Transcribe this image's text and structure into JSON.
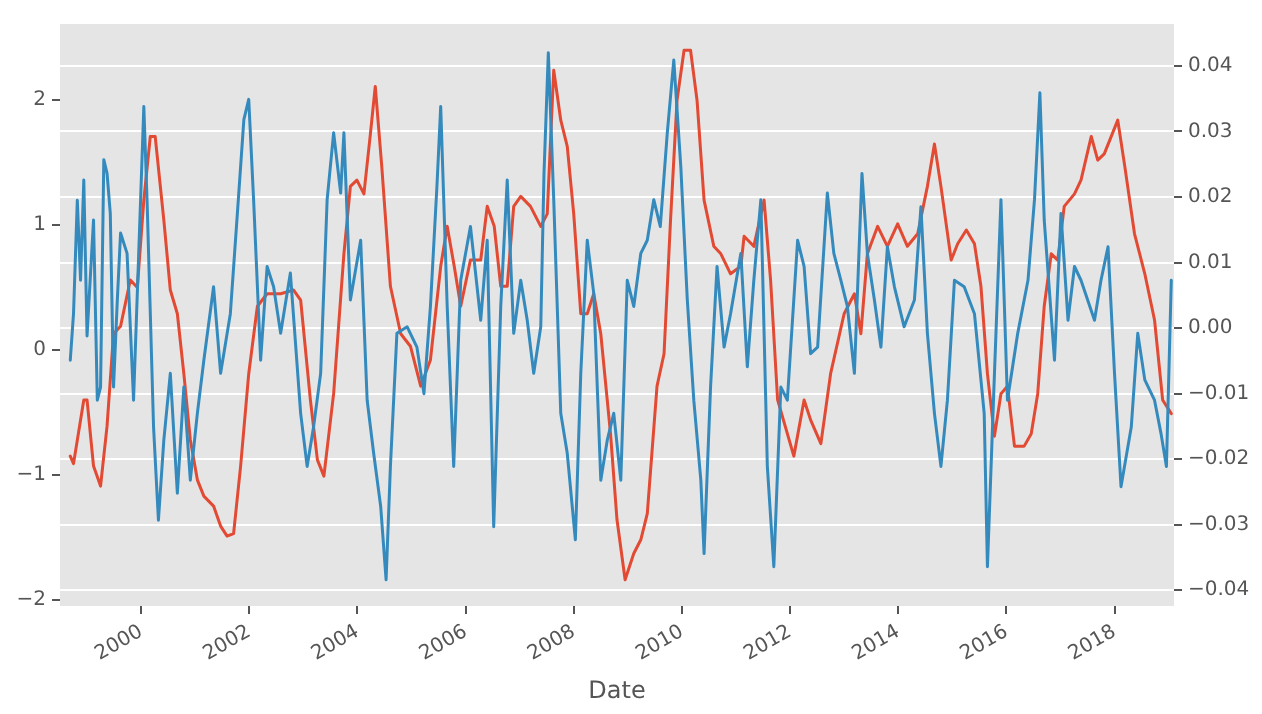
{
  "chart_data": {
    "type": "line",
    "xlabel": "Date",
    "grid": "y",
    "legend": false,
    "marker": "none",
    "line_style": "solid",
    "xlim": [
      1998.5,
      2019.1
    ],
    "xticks": [
      2000,
      2002,
      2004,
      2006,
      2008,
      2010,
      2012,
      2014,
      2016,
      2018
    ],
    "ylim": [
      -2.05,
      2.61
    ],
    "yticks": [
      {
        "value": -2,
        "label": "−2"
      },
      {
        "value": -1,
        "label": "−1"
      },
      0,
      1,
      2
    ],
    "y2lim": [
      -0.0424,
      0.0464
    ],
    "y2ticks": [
      {
        "value": -0.04,
        "label": "−0.04"
      },
      {
        "value": -0.03,
        "label": "−0.03"
      },
      {
        "value": -0.02,
        "label": "−0.02"
      },
      {
        "value": -0.01,
        "label": "−0.01"
      },
      {
        "value": 0,
        "label": "0.00"
      },
      {
        "value": 0.01,
        "label": "0.01"
      },
      {
        "value": 0.02,
        "label": "0.02"
      },
      {
        "value": 0.03,
        "label": "0.03"
      },
      {
        "value": 0.04,
        "label": "0.04"
      }
    ],
    "series": [
      {
        "color": "#e24a33",
        "axis": "y",
        "x": [
          1998.69,
          1998.75,
          1998.94,
          1999.0,
          1999.12,
          1999.25,
          1999.37,
          1999.49,
          1999.62,
          1999.8,
          1999.93,
          2000.05,
          2000.17,
          2000.26,
          2000.42,
          2000.54,
          2000.67,
          2000.79,
          2000.91,
          2001.04,
          2001.16,
          2001.34,
          2001.47,
          2001.59,
          2001.71,
          2001.84,
          2001.99,
          2002.15,
          2002.33,
          2002.58,
          2002.82,
          2002.95,
          2003.13,
          2003.26,
          2003.38,
          2003.56,
          2003.75,
          2003.87,
          2003.99,
          2004.12,
          2004.24,
          2004.33,
          2004.45,
          2004.61,
          2004.8,
          2004.98,
          2005.17,
          2005.35,
          2005.54,
          2005.66,
          2005.79,
          2005.91,
          2006.09,
          2006.28,
          2006.4,
          2006.53,
          2006.65,
          2006.77,
          2006.89,
          2007.02,
          2007.2,
          2007.39,
          2007.51,
          2007.63,
          2007.76,
          2007.88,
          2008.0,
          2008.13,
          2008.25,
          2008.37,
          2008.5,
          2008.68,
          2008.8,
          2008.95,
          2009.11,
          2009.24,
          2009.36,
          2009.54,
          2009.67,
          2009.79,
          2009.91,
          2010.04,
          2010.16,
          2010.28,
          2010.41,
          2010.59,
          2010.72,
          2010.9,
          2011.09,
          2011.15,
          2011.33,
          2011.52,
          2011.64,
          2011.77,
          2011.95,
          2012.07,
          2012.26,
          2012.38,
          2012.57,
          2012.75,
          2013.0,
          2013.19,
          2013.31,
          2013.43,
          2013.62,
          2013.8,
          2013.99,
          2014.17,
          2014.36,
          2014.54,
          2014.67,
          2014.79,
          2014.98,
          2015.1,
          2015.26,
          2015.41,
          2015.53,
          2015.65,
          2015.78,
          2015.9,
          2016.02,
          2016.15,
          2016.33,
          2016.46,
          2016.58,
          2016.7,
          2016.83,
          2016.95,
          2017.07,
          2017.26,
          2017.38,
          2017.57,
          2017.69,
          2017.81,
          2017.94,
          2018.06,
          2018.19,
          2018.37,
          2018.56,
          2018.74,
          2018.89,
          2019.05
        ],
        "values": [
          -0.85,
          -0.91,
          -0.4,
          -0.4,
          -0.93,
          -1.09,
          -0.61,
          0.13,
          0.19,
          0.56,
          0.5,
          1.2,
          1.71,
          1.71,
          1.04,
          0.48,
          0.29,
          -0.19,
          -0.72,
          -1.04,
          -1.17,
          -1.25,
          -1.41,
          -1.49,
          -1.47,
          -0.93,
          -0.19,
          0.35,
          0.45,
          0.45,
          0.48,
          0.4,
          -0.4,
          -0.88,
          -1.01,
          -0.35,
          0.77,
          1.31,
          1.36,
          1.25,
          1.73,
          2.11,
          1.47,
          0.51,
          0.13,
          0.03,
          -0.29,
          -0.08,
          0.67,
          0.99,
          0.67,
          0.35,
          0.72,
          0.72,
          1.15,
          0.99,
          0.51,
          0.51,
          1.15,
          1.23,
          1.15,
          0.99,
          1.09,
          2.24,
          1.84,
          1.63,
          1.09,
          0.29,
          0.29,
          0.45,
          0.13,
          -0.67,
          -1.36,
          -1.84,
          -1.63,
          -1.52,
          -1.31,
          -0.29,
          -0.03,
          1.04,
          2.0,
          2.4,
          2.4,
          2.0,
          1.2,
          0.83,
          0.77,
          0.61,
          0.67,
          0.91,
          0.83,
          1.2,
          0.56,
          -0.4,
          -0.67,
          -0.85,
          -0.4,
          -0.56,
          -0.75,
          -0.19,
          0.29,
          0.45,
          0.13,
          0.77,
          0.99,
          0.83,
          1.01,
          0.83,
          0.93,
          1.31,
          1.65,
          1.31,
          0.72,
          0.85,
          0.96,
          0.85,
          0.51,
          -0.19,
          -0.69,
          -0.35,
          -0.29,
          -0.77,
          -0.77,
          -0.67,
          -0.35,
          0.35,
          0.77,
          0.72,
          1.15,
          1.25,
          1.36,
          1.71,
          1.52,
          1.57,
          1.71,
          1.84,
          1.47,
          0.93,
          0.61,
          0.24,
          -0.4,
          -0.51
        ]
      },
      {
        "color": "#348abd",
        "axis": "y2",
        "x": [
          1998.69,
          1998.75,
          1998.82,
          1998.88,
          1998.94,
          1999.0,
          1999.12,
          1999.19,
          1999.25,
          1999.31,
          1999.37,
          1999.43,
          1999.49,
          1999.56,
          1999.62,
          1999.74,
          1999.86,
          1999.99,
          2000.05,
          2000.11,
          2000.23,
          2000.32,
          2000.42,
          2000.54,
          2000.67,
          2000.79,
          2000.91,
          2001.04,
          2001.16,
          2001.34,
          2001.47,
          2001.65,
          2001.78,
          2001.9,
          2001.99,
          2002.08,
          2002.21,
          2002.33,
          2002.45,
          2002.58,
          2002.76,
          2002.95,
          2003.07,
          2003.19,
          2003.32,
          2003.44,
          2003.56,
          2003.69,
          2003.75,
          2003.87,
          2004.06,
          2004.18,
          2004.3,
          2004.43,
          2004.53,
          2004.61,
          2004.73,
          2004.92,
          2005.1,
          2005.23,
          2005.35,
          2005.47,
          2005.54,
          2005.66,
          2005.78,
          2005.91,
          2006.09,
          2006.28,
          2006.4,
          2006.52,
          2006.65,
          2006.77,
          2006.89,
          2007.02,
          2007.14,
          2007.26,
          2007.39,
          2007.45,
          2007.53,
          2007.63,
          2007.76,
          2007.88,
          2008.03,
          2008.13,
          2008.25,
          2008.37,
          2008.5,
          2008.62,
          2008.74,
          2008.87,
          2008.99,
          2009.11,
          2009.24,
          2009.36,
          2009.48,
          2009.6,
          2009.73,
          2009.85,
          2009.98,
          2010.1,
          2010.22,
          2010.35,
          2010.41,
          2010.53,
          2010.65,
          2010.78,
          2010.9,
          2011.09,
          2011.21,
          2011.33,
          2011.46,
          2011.58,
          2011.7,
          2011.83,
          2011.95,
          2012.14,
          2012.26,
          2012.38,
          2012.51,
          2012.69,
          2012.81,
          2012.94,
          2013.06,
          2013.19,
          2013.33,
          2013.43,
          2013.56,
          2013.68,
          2013.8,
          2013.93,
          2014.11,
          2014.3,
          2014.42,
          2014.54,
          2014.67,
          2014.79,
          2014.91,
          2015.04,
          2015.22,
          2015.41,
          2015.59,
          2015.65,
          2015.78,
          2015.9,
          2016.02,
          2016.21,
          2016.4,
          2016.52,
          2016.62,
          2016.7,
          2016.89,
          2017.01,
          2017.14,
          2017.26,
          2017.38,
          2017.63,
          2017.75,
          2017.88,
          2018.0,
          2018.12,
          2018.31,
          2018.43,
          2018.56,
          2018.74,
          2018.86,
          2018.96,
          2019.05
        ],
        "values": [
          -0.0049,
          0.0022,
          0.0195,
          0.0073,
          0.0226,
          -0.0012,
          0.0165,
          -0.011,
          -0.009,
          0.0257,
          0.0236,
          0.0175,
          -0.009,
          0.0043,
          0.0145,
          0.0114,
          -0.011,
          0.0195,
          0.0338,
          0.0195,
          -0.0151,
          -0.0293,
          -0.0171,
          -0.0069,
          -0.0252,
          -0.009,
          -0.0232,
          -0.013,
          -0.0049,
          0.0063,
          -0.0069,
          0.0022,
          0.0175,
          0.0318,
          0.0349,
          0.0196,
          -0.0049,
          0.0094,
          0.0063,
          -0.0008,
          0.0084,
          -0.013,
          -0.0211,
          -0.015,
          -0.0069,
          0.0196,
          0.0298,
          0.0206,
          0.0298,
          0.0043,
          0.0134,
          -0.011,
          -0.0191,
          -0.0272,
          -0.0384,
          -0.0211,
          -0.0008,
          0.0002,
          -0.0029,
          -0.01,
          0.0033,
          0.0216,
          0.0338,
          0.0033,
          -0.0211,
          0.0073,
          0.0155,
          0.0012,
          0.0134,
          -0.0303,
          0.0033,
          0.0226,
          -0.0008,
          0.0073,
          0.0012,
          -0.0069,
          0.0002,
          0.0236,
          0.042,
          0.0196,
          -0.013,
          -0.0191,
          -0.0323,
          -0.0069,
          0.0134,
          0.0053,
          -0.0232,
          -0.0171,
          -0.013,
          -0.0232,
          0.0073,
          0.0033,
          0.0114,
          0.0134,
          0.0196,
          0.0155,
          0.0298,
          0.0409,
          0.0246,
          0.0043,
          -0.011,
          -0.0232,
          -0.0344,
          -0.009,
          0.0094,
          -0.0029,
          0.0022,
          0.0114,
          -0.0059,
          0.0073,
          0.0196,
          -0.0211,
          -0.0364,
          -0.009,
          -0.011,
          0.0134,
          0.0094,
          -0.0039,
          -0.0029,
          0.0206,
          0.0114,
          0.0073,
          0.0033,
          -0.0069,
          0.0236,
          0.0114,
          0.0043,
          -0.0029,
          0.0124,
          0.0063,
          0.0002,
          0.0043,
          0.0185,
          -0.0008,
          -0.013,
          -0.0211,
          -0.011,
          0.0073,
          0.0063,
          0.0022,
          -0.013,
          -0.0364,
          -0.0069,
          0.0196,
          -0.011,
          -0.0008,
          0.0073,
          0.0196,
          0.0359,
          0.0165,
          -0.0049,
          0.0175,
          0.0012,
          0.0094,
          0.0073,
          0.0012,
          0.0073,
          0.0124,
          -0.0069,
          -0.0242,
          -0.0151,
          -0.0008,
          -0.0079,
          -0.011,
          -0.0161,
          -0.0211,
          0.0073
        ]
      }
    ]
  }
}
